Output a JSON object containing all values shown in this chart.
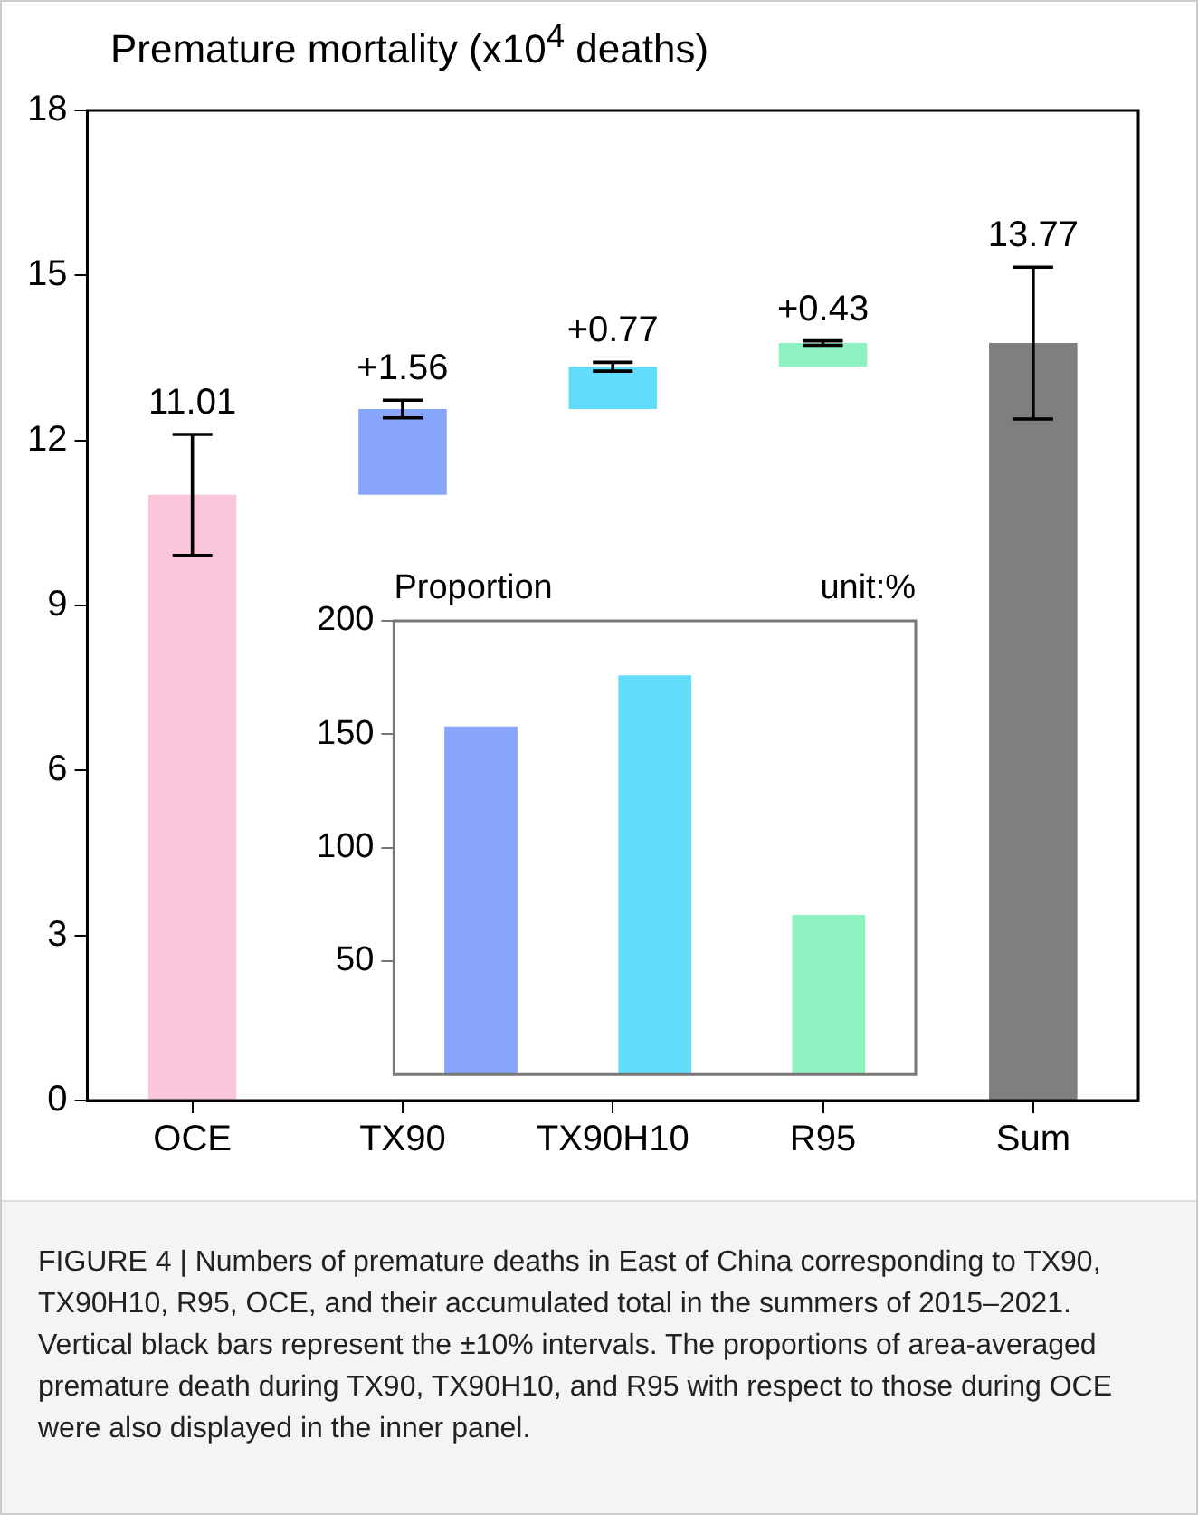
{
  "chart_data": [
    {
      "type": "bar",
      "title": "Premature mortality (x10$^{4}$ deaths)",
      "categories": [
        "OCE",
        "TX90",
        "TX90H10",
        "R95",
        "Sum"
      ],
      "values": [
        11.01,
        1.56,
        0.77,
        0.43,
        13.77
      ],
      "base": [
        0,
        11.01,
        12.57,
        13.34,
        0
      ],
      "colors": [
        "#f9c6dc",
        "#87a5fb",
        "#62dcfb",
        "#8ef2c0",
        "#7f7f7f"
      ],
      "errors": [
        1.1,
        0.16,
        0.08,
        0.04,
        1.38
      ],
      "value_labels": [
        "11.01",
        "+1.56",
        "+0.77",
        "+0.43",
        "13.77"
      ],
      "ylim": [
        0,
        18
      ],
      "yticks": [
        0,
        3,
        6,
        9,
        12,
        15,
        18
      ],
      "grid": false,
      "legend": false,
      "annotations": [
        "FIGURE 4 | Numbers of premature deaths in East of China corresponding to TX90, TX90H10, R95, OCE, and their accumulated total in the summers of 2015–2021. Vertical black bars represent the ±10% intervals. The proportions of area-averaged premature death during TX90, TX90H10, and R95 with respect to those during OCE were also displayed in the inner panel."
      ]
    },
    {
      "type": "bar",
      "title": "Proportion",
      "categories": [
        null,
        null,
        null
      ],
      "values": [
        153.4,
        176,
        70.3
      ],
      "colors": [
        "#87a5fb",
        "#62dcfb",
        "#8ef2c0"
      ],
      "ylim": [
        0,
        200
      ],
      "yticks": [
        50,
        100,
        150,
        200
      ],
      "grid": false,
      "legend": false,
      "tick_labels": "y",
      "annotations": [
        "unit:%"
      ]
    }
  ]
}
